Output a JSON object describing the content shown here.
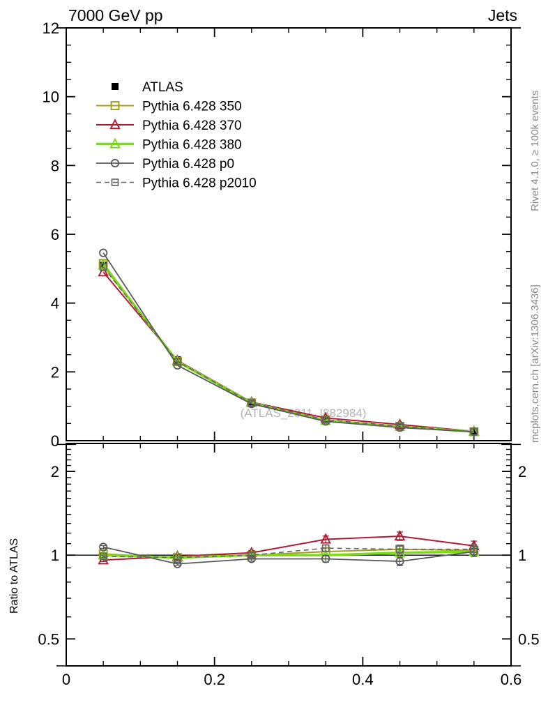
{
  "header": {
    "title_left": "7000 GeV pp",
    "title_right": "Jets"
  },
  "side_texts": {
    "top": "Rivet 4.1.0, ≥ 100k events",
    "bottom": "mcplots.cern.ch [arXiv:1306.3436]"
  },
  "watermark": "(ATLAS_2011_I882984)",
  "ratio_label": "Ratio to ATLAS",
  "chart_data": {
    "type": "line",
    "x": [
      0.05,
      0.15,
      0.25,
      0.35,
      0.45,
      0.55
    ],
    "xlim": [
      0,
      0.6
    ],
    "x_major_ticks": [
      0.2,
      0.4,
      0.6
    ],
    "x_tick_labels": [
      "0",
      "0.2",
      "0.4",
      "0.6"
    ],
    "x_label_positions": [
      0,
      0.2,
      0.4,
      0.6
    ],
    "x_minor_step": 0.05,
    "main_panel": {
      "scale": "linear",
      "ylim": [
        0,
        12
      ],
      "y_major_ticks": [
        0,
        2,
        4,
        6,
        8,
        10,
        12
      ],
      "y_tick_labels": [
        "0",
        "2",
        "4",
        "6",
        "8",
        "10",
        "12"
      ],
      "y_minor_step": 0.5
    },
    "ratio_panel": {
      "scale": "log",
      "ylim": [
        0.4,
        2.52
      ],
      "y_major_ticks": [
        0.5,
        1,
        2
      ],
      "y_tick_labels": [
        "0.5",
        "1",
        "2"
      ],
      "y_minor_ticks": [
        0.4,
        0.6,
        0.7,
        0.8,
        0.9,
        1.1,
        1.2,
        1.3,
        1.4,
        1.5,
        1.6,
        1.7,
        1.8,
        1.9,
        2.1,
        2.2,
        2.3,
        2.4,
        2.5
      ],
      "baseline": 1
    },
    "atlas": {
      "id": "atlas",
      "label": "ATLAS",
      "color": "#000000",
      "marker": "square-filled",
      "values": [
        5.1,
        2.35,
        1.1,
        0.58,
        0.4,
        0.25
      ]
    },
    "series": [
      {
        "id": "pythia-350",
        "label": "Pythia 6.428 350",
        "color": "#a0a018",
        "marker": "square-open",
        "dash": null,
        "lw": 2.0,
        "values": [
          5.15,
          2.3,
          1.1,
          0.6,
          0.42,
          0.26
        ],
        "ratio": [
          1.01,
          0.98,
          1.0,
          1.03,
          1.05,
          1.04
        ]
      },
      {
        "id": "pythia-370",
        "label": "Pythia 6.428 370",
        "color": "#b11a32",
        "marker": "triangle-open",
        "dash": null,
        "lw": 2.0,
        "values": [
          4.9,
          2.33,
          1.12,
          0.66,
          0.47,
          0.27
        ],
        "ratio": [
          0.96,
          0.99,
          1.02,
          1.14,
          1.17,
          1.08
        ]
      },
      {
        "id": "pythia-380",
        "label": "Pythia 6.428 380",
        "color": "#77dd11",
        "marker": "triangle-open",
        "dash": null,
        "lw": 3.4,
        "values": [
          5.1,
          2.3,
          1.1,
          0.58,
          0.41,
          0.26
        ],
        "ratio": [
          1.0,
          0.98,
          1.0,
          1.0,
          1.02,
          1.03
        ]
      },
      {
        "id": "pythia-p0",
        "label": "Pythia 6.428 p0",
        "color": "#5a5a5a",
        "marker": "circle-open",
        "dash": null,
        "lw": 1.8,
        "values": [
          5.46,
          2.19,
          1.07,
          0.56,
          0.38,
          0.26
        ],
        "ratio": [
          1.07,
          0.93,
          0.97,
          0.97,
          0.95,
          1.03
        ]
      },
      {
        "id": "pythia-p2010",
        "label": "Pythia 6.428 p2010",
        "color": "#666666",
        "marker": "square-open-small",
        "dash": "7 5",
        "lw": 1.6,
        "values": [
          5.05,
          2.3,
          1.1,
          0.61,
          0.42,
          0.26
        ],
        "ratio": [
          0.99,
          0.98,
          1.0,
          1.06,
          1.05,
          1.05
        ]
      }
    ],
    "ratio_err": [
      0.012,
      0.012,
      0.018,
      0.028,
      0.035,
      0.04
    ]
  }
}
